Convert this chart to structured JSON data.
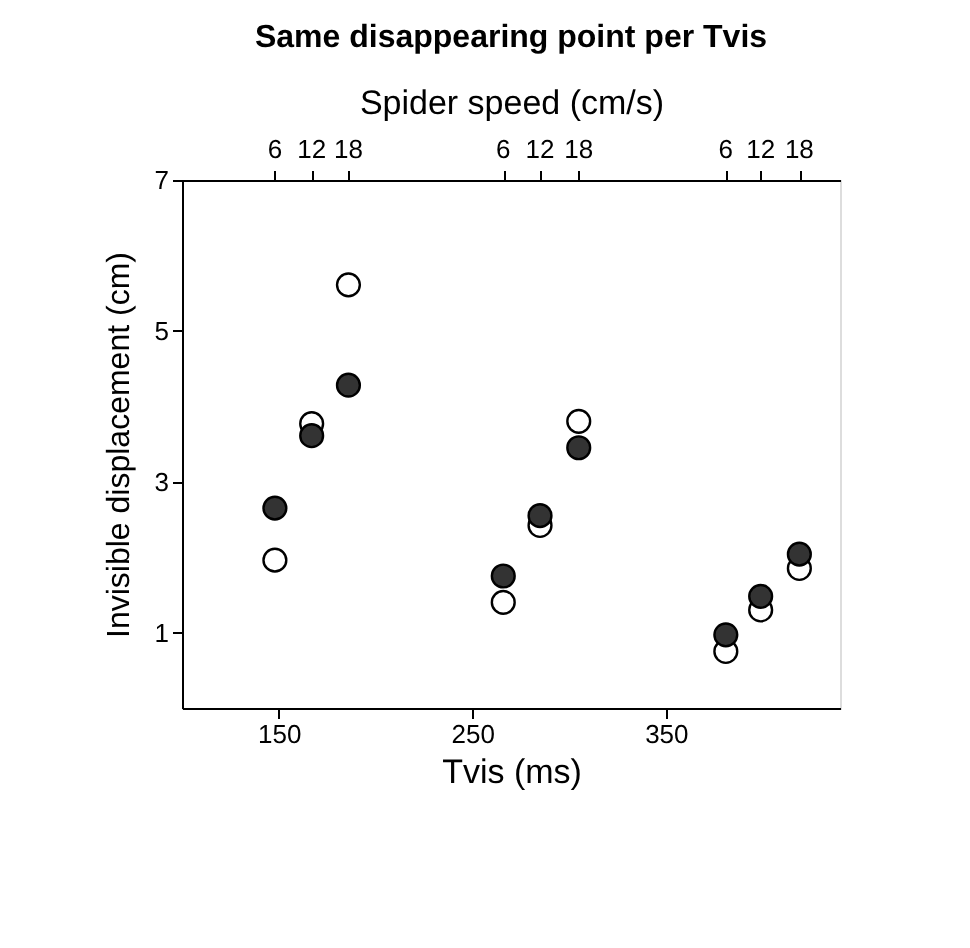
{
  "chart_data": {
    "type": "scatter",
    "title": "Same disappearing point per Tvis",
    "xlabel": "Tvis (ms)",
    "ylabel": "Invisible displacement (cm)",
    "x2label": "Spider speed (cm/s)",
    "x": [
      148,
      167,
      186,
      266,
      285,
      305,
      381,
      399,
      419
    ],
    "series": [
      {
        "color": "#ffffff",
        "values": [
          1.96,
          3.77,
          5.61,
          1.4,
          2.42,
          3.8,
          0.75,
          1.3,
          1.85
        ]
      },
      {
        "color": "#333333",
        "values": [
          2.65,
          3.61,
          4.28,
          1.75,
          2.55,
          3.45,
          0.97,
          1.48,
          2.04
        ]
      }
    ],
    "xlim": [
      100,
      440
    ],
    "xticks": [
      150,
      250,
      350
    ],
    "ylim": [
      0,
      7
    ],
    "yticks": [
      1,
      3,
      5,
      7
    ],
    "annotations": [
      {
        "text": "6",
        "x": 148
      },
      {
        "text": "12",
        "x": 167
      },
      {
        "text": "18",
        "x": 186
      },
      {
        "text": "6",
        "x": 266
      },
      {
        "text": "12",
        "x": 285
      },
      {
        "text": "18",
        "x": 305
      },
      {
        "text": "6",
        "x": 381
      },
      {
        "text": "12",
        "x": 399
      },
      {
        "text": "18",
        "x": 419
      }
    ],
    "marker": "circle",
    "grid": false
  }
}
